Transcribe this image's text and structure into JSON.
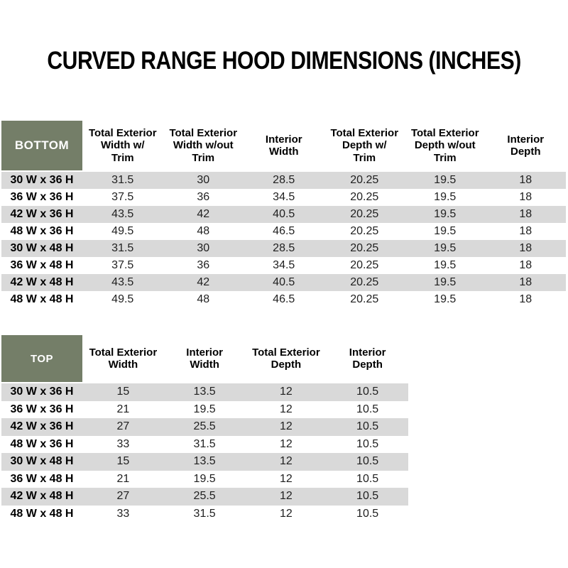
{
  "page": {
    "title": "CURVED RANGE HOOD DIMENSIONS (INCHES)"
  },
  "colors": {
    "header_green": "#747E68",
    "row_alternate_gray": "#D9D9D9",
    "row_white": "#FFFFFF",
    "corner_text": "#FFFFFF",
    "body_text": "#1F1F1F"
  },
  "chart_data": [
    {
      "type": "table",
      "corner_label": "BOTTOM",
      "column_headers": [
        [
          "Total Exterior",
          "Width w/",
          "Trim"
        ],
        [
          "Total Exterior",
          "Width w/out",
          "Trim"
        ],
        [
          "Interior",
          "Width"
        ],
        [
          "Total Exterior",
          "Depth w/",
          "Trim"
        ],
        [
          "Total Exterior",
          "Depth w/out",
          "Trim"
        ],
        [
          "Interior",
          "Depth"
        ]
      ],
      "rows": [
        {
          "label": "30 W x 36 H",
          "values": [
            "31.5",
            "30",
            "28.5",
            "20.25",
            "19.5",
            "18"
          ]
        },
        {
          "label": "36 W x 36 H",
          "values": [
            "37.5",
            "36",
            "34.5",
            "20.25",
            "19.5",
            "18"
          ]
        },
        {
          "label": "42 W x 36 H",
          "values": [
            "43.5",
            "42",
            "40.5",
            "20.25",
            "19.5",
            "18"
          ]
        },
        {
          "label": "48 W x 36 H",
          "values": [
            "49.5",
            "48",
            "46.5",
            "20.25",
            "19.5",
            "18"
          ]
        },
        {
          "label": "30 W x 48 H",
          "values": [
            "31.5",
            "30",
            "28.5",
            "20.25",
            "19.5",
            "18"
          ]
        },
        {
          "label": "36 W x 48 H",
          "values": [
            "37.5",
            "36",
            "34.5",
            "20.25",
            "19.5",
            "18"
          ]
        },
        {
          "label": "42 W x 48 H",
          "values": [
            "43.5",
            "42",
            "40.5",
            "20.25",
            "19.5",
            "18"
          ]
        },
        {
          "label": "48 W x 48 H",
          "values": [
            "49.5",
            "48",
            "46.5",
            "20.25",
            "19.5",
            "18"
          ]
        }
      ]
    },
    {
      "type": "table",
      "corner_label": "TOP",
      "column_headers": [
        [
          "Total Exterior",
          "Width"
        ],
        [
          "Interior",
          "Width"
        ],
        [
          "Total Exterior",
          "Depth"
        ],
        [
          "Interior",
          "Depth"
        ]
      ],
      "rows": [
        {
          "label": "30 W x 36 H",
          "values": [
            "15",
            "13.5",
            "12",
            "10.5"
          ]
        },
        {
          "label": "36 W x 36 H",
          "values": [
            "21",
            "19.5",
            "12",
            "10.5"
          ]
        },
        {
          "label": "42 W x 36 H",
          "values": [
            "27",
            "25.5",
            "12",
            "10.5"
          ]
        },
        {
          "label": "48 W x 36 H",
          "values": [
            "33",
            "31.5",
            "12",
            "10.5"
          ]
        },
        {
          "label": "30 W x 48 H",
          "values": [
            "15",
            "13.5",
            "12",
            "10.5"
          ]
        },
        {
          "label": "36 W x 48 H",
          "values": [
            "21",
            "19.5",
            "12",
            "10.5"
          ]
        },
        {
          "label": "42 W x 48 H",
          "values": [
            "27",
            "25.5",
            "12",
            "10.5"
          ]
        },
        {
          "label": "48 W x 48 H",
          "values": [
            "33",
            "31.5",
            "12",
            "10.5"
          ]
        }
      ]
    }
  ]
}
